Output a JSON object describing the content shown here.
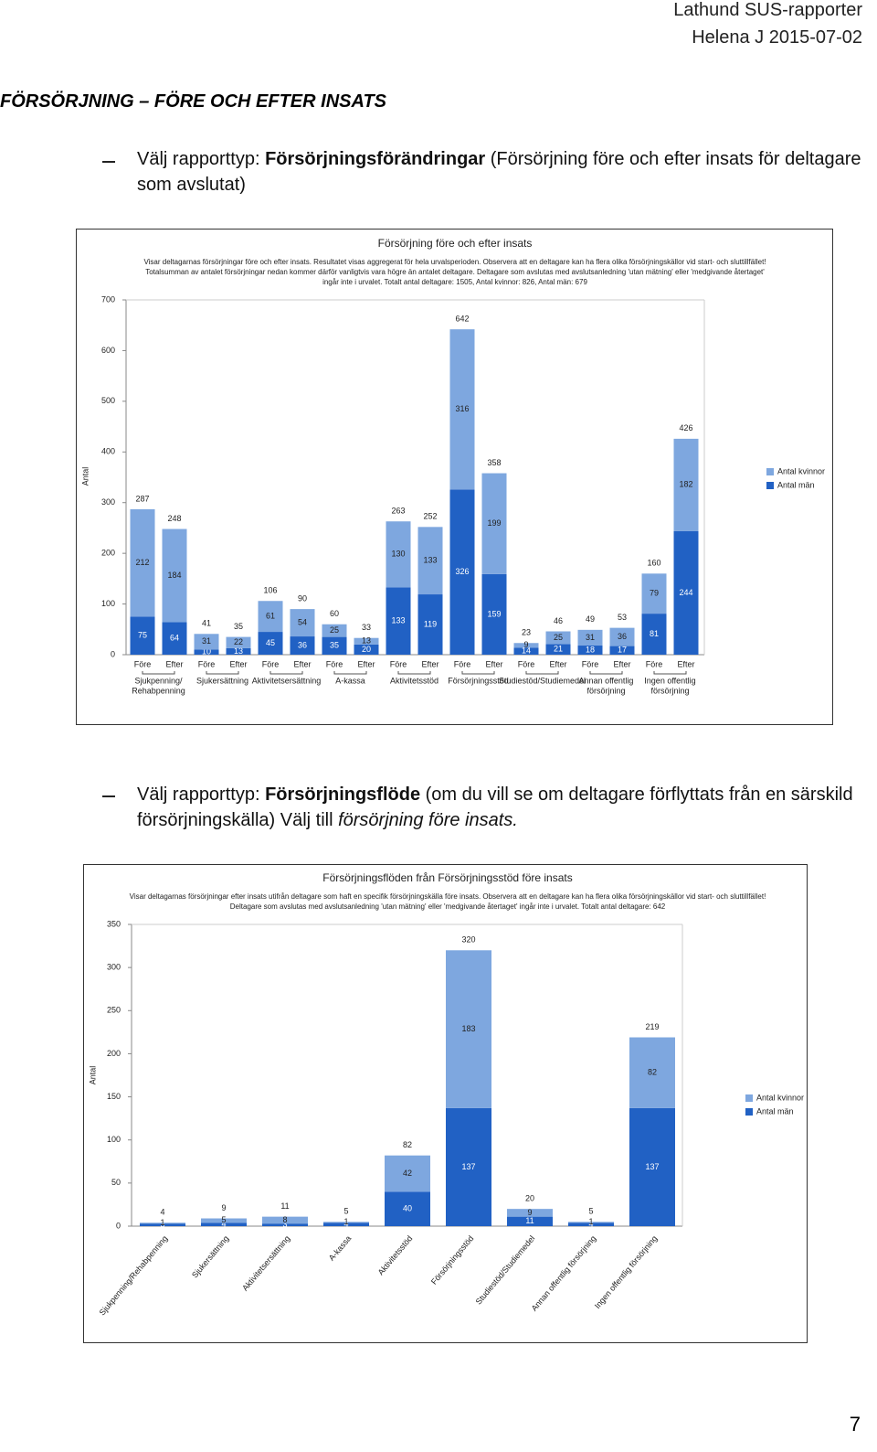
{
  "header": {
    "line1": "Lathund SUS-rapporter",
    "line2": "Helena J 2015-07-02"
  },
  "heading": "FÖRSÖRJNING – FÖRE OCH EFTER INSATS",
  "bullets": [
    {
      "before": "Välj rapporttyp: ",
      "bold": "Försörjningsförändringar",
      "after": " (Försörjning före och efter insats för deltagare som avslutat)"
    },
    {
      "before": "Välj rapporttyp: ",
      "bold": "Försörjningsflöde",
      "after": " (om du vill se om deltagare förflyttats från en särskild försörjningskälla) Välj till ",
      "italic": "försörjning före insats."
    }
  ],
  "page_number": "7",
  "chart_data": [
    {
      "type": "bar",
      "stacked": true,
      "title": "Försörjning före och efter insats",
      "description": [
        "Visar deltagarnas försörjningar före och efter insats. Resultatet visas aggregerat för hela urvalsperioden. Observera att en deltagare kan ha flera olika försörjningskällor vid start- och sluttillfället!",
        "Totalsumman av antalet försörjningar nedan kommer därför vanligtvis vara högre än antalet deltagare. Deltagare som avslutas med avslutsanledning 'utan mätning' eller 'medgivande återtaget'",
        "ingår inte i urvalet. Totalt antal deltagare: 1505, Antal kvinnor: 826, Antal män: 679"
      ],
      "ylabel": "Antal",
      "categories": [
        "Före",
        "Efter",
        "Före",
        "Efter",
        "Före",
        "Efter",
        "Före",
        "Efter",
        "Före",
        "Efter",
        "Före",
        "Efter",
        "Före",
        "Efter",
        "Före",
        "Efter",
        "Före",
        "Efter"
      ],
      "groups": [
        [
          "Sjukpenning/",
          "Rehabpenning"
        ],
        [
          "Sjukersättning"
        ],
        [
          "Aktivitetsersättning"
        ],
        [
          "A-kassa"
        ],
        [
          "Aktivitetsstöd"
        ],
        [
          "Försörjningsstöd"
        ],
        [
          "Studiestöd/Studiemedel"
        ],
        [
          "Annan offentlig",
          "försörjning"
        ],
        [
          "Ingen offentlig",
          "försörjning"
        ]
      ],
      "series": [
        {
          "name": "Antal män",
          "color": "#2161c4",
          "values": [
            75,
            64,
            10,
            13,
            45,
            36,
            35,
            20,
            133,
            119,
            326,
            159,
            14,
            21,
            18,
            17,
            81,
            244
          ]
        },
        {
          "name": "Antal kvinnor",
          "color": "#7ea7df",
          "values": [
            212,
            184,
            31,
            22,
            61,
            54,
            25,
            13,
            130,
            133,
            316,
            199,
            9,
            25,
            31,
            36,
            79,
            182
          ]
        }
      ],
      "totals": [
        287,
        248,
        41,
        35,
        106,
        90,
        60,
        33,
        263,
        252,
        642,
        358,
        23,
        46,
        49,
        53,
        160,
        426
      ],
      "ylim": [
        0,
        700
      ],
      "yticks": [
        0,
        100,
        200,
        300,
        400,
        500,
        600,
        700
      ],
      "grid": false,
      "legend": "right"
    },
    {
      "type": "bar",
      "stacked": true,
      "title": "Försörjningsflöden från Försörjningsstöd före insats",
      "description": [
        "Visar deltagarnas försörjningar efter insats utifrån deltagare som haft en specifik försörjningskälla före insats. Observera att en deltagare kan ha flera olika försörjningskällor vid start- och sluttillfället!",
        "Deltagare som avslutas med avslutsanledning 'utan mätning' eller 'medgivande återtaget' ingår inte i urvalet. Totalt antal deltagare: 642"
      ],
      "ylabel": "Antal",
      "categories": [
        "Sjukpenning/Rehabpenning",
        "Sjukersättning",
        "Aktivitetsersättning",
        "A-kassa",
        "Aktivitetsstöd",
        "Försörjningsstöd",
        "Studiestöd/Studiemedel",
        "Annan offentlig försörjning",
        "Ingen offentlig försörjning"
      ],
      "series": [
        {
          "name": "Antal män",
          "color": "#2161c4",
          "values": [
            3,
            4,
            3,
            4,
            40,
            137,
            11,
            4,
            137
          ]
        },
        {
          "name": "Antal kvinnor",
          "color": "#7ea7df",
          "values": [
            1,
            5,
            8,
            1,
            42,
            183,
            9,
            1,
            82
          ]
        }
      ],
      "totals": [
        4,
        9,
        11,
        5,
        82,
        320,
        20,
        5,
        219
      ],
      "ylim": [
        0,
        350
      ],
      "yticks": [
        0,
        50,
        100,
        150,
        200,
        250,
        300,
        350
      ],
      "grid": false,
      "legend": "right"
    }
  ]
}
